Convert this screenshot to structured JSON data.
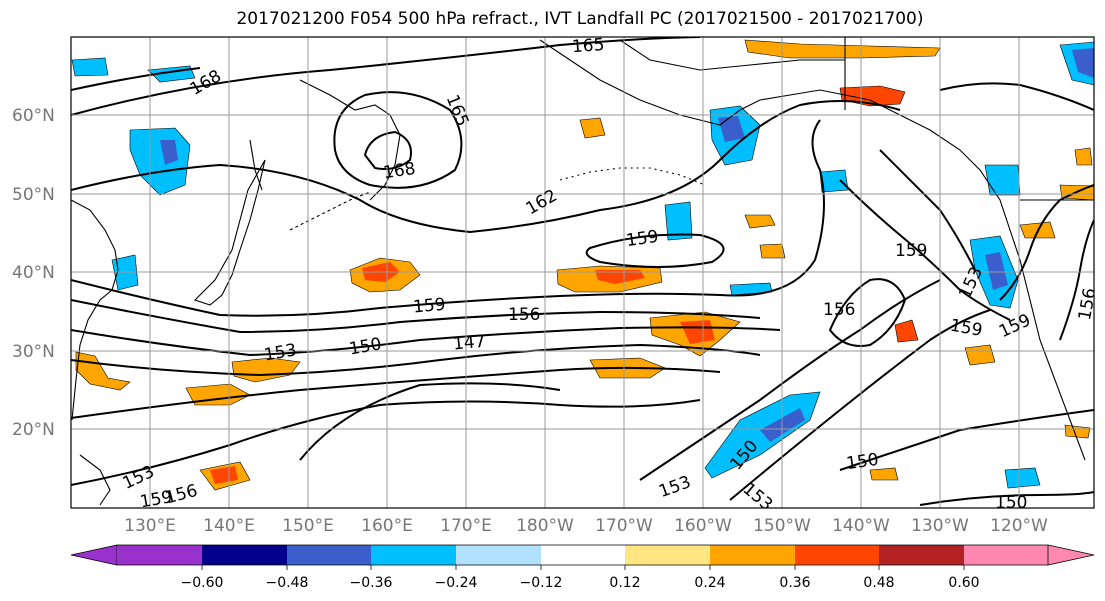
{
  "title": "2017021200 F054 500 hPa refract., IVT Landfall PC (2017021500 - 2017021700)",
  "lat_labels": [
    "60°N",
    "50°N",
    "40°N",
    "30°N",
    "20°N"
  ],
  "lon_labels": [
    "130°E",
    "140°E",
    "150°E",
    "160°E",
    "170°E",
    "180°W",
    "170°W",
    "160°W",
    "150°W",
    "140°W",
    "130°W",
    "120°W"
  ],
  "colorbar": {
    "ticks": [
      "−0.60",
      "−0.48",
      "−0.36",
      "−0.24",
      "−0.12",
      "0.12",
      "0.24",
      "0.36",
      "0.48",
      "0.60"
    ],
    "colors": [
      "#9932cc",
      "#00008b",
      "#3a5fcd",
      "#00bfff",
      "#b2e0ff",
      "#ffffff",
      "#ffe680",
      "#ffa500",
      "#ff4500",
      "#b22222",
      "#ff88b0"
    ]
  },
  "contour_labels": [
    "165",
    "168",
    "165",
    "168",
    "162",
    "159",
    "159",
    "156",
    "156",
    "159",
    "159",
    "153",
    "150",
    "147",
    "153",
    "159",
    "153",
    "156",
    "159",
    "150",
    "150",
    "153",
    "153",
    "150",
    "156"
  ],
  "colors": {
    "contour": "#000000",
    "coast": "#000000",
    "grid": "#9a9a9a",
    "orange": "#ffa500",
    "yellow": "#ffe680",
    "red": "#ff4500",
    "blue": "#3a5fcd",
    "cyan": "#00bfff",
    "lightblue": "#b2e0ff"
  }
}
